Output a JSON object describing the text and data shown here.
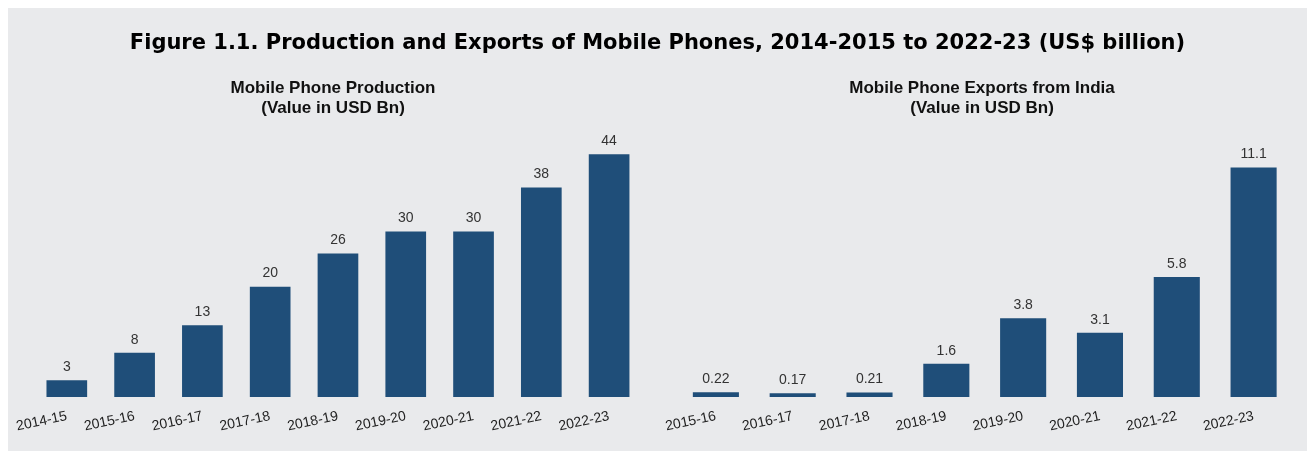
{
  "chart_data": [
    {
      "type": "other",
      "title": "Figure 1.1. Production and Exports of Mobile Phones, 2014-2015 to 2022-23 (US$ billion)"
    },
    {
      "type": "bar",
      "title": "Mobile Phone Production\n(Value in USD Bn)",
      "categories": [
        "2014-15",
        "2015-16",
        "2016-17",
        "2017-18",
        "2018-19",
        "2019-20",
        "2020-21",
        "2021-22",
        "2022-23"
      ],
      "values": [
        3,
        8,
        13,
        20,
        26,
        30,
        30,
        38,
        44
      ],
      "color": "#1f4e79",
      "data_labels": true,
      "grid": false,
      "tick_labels": "x"
    },
    {
      "type": "bar",
      "title": "Mobile Phone Exports from India\n(Value in USD Bn)",
      "categories": [
        "2015-16",
        "2016-17",
        "2017-18",
        "2018-19",
        "2019-20",
        "2020-21",
        "2021-22",
        "2022-23"
      ],
      "values": [
        0.22,
        0.17,
        0.21,
        1.6,
        3.8,
        3.1,
        5.8,
        11.1
      ],
      "color": "#1f4e79",
      "data_labels": true,
      "grid": false,
      "tick_labels": "x"
    }
  ]
}
